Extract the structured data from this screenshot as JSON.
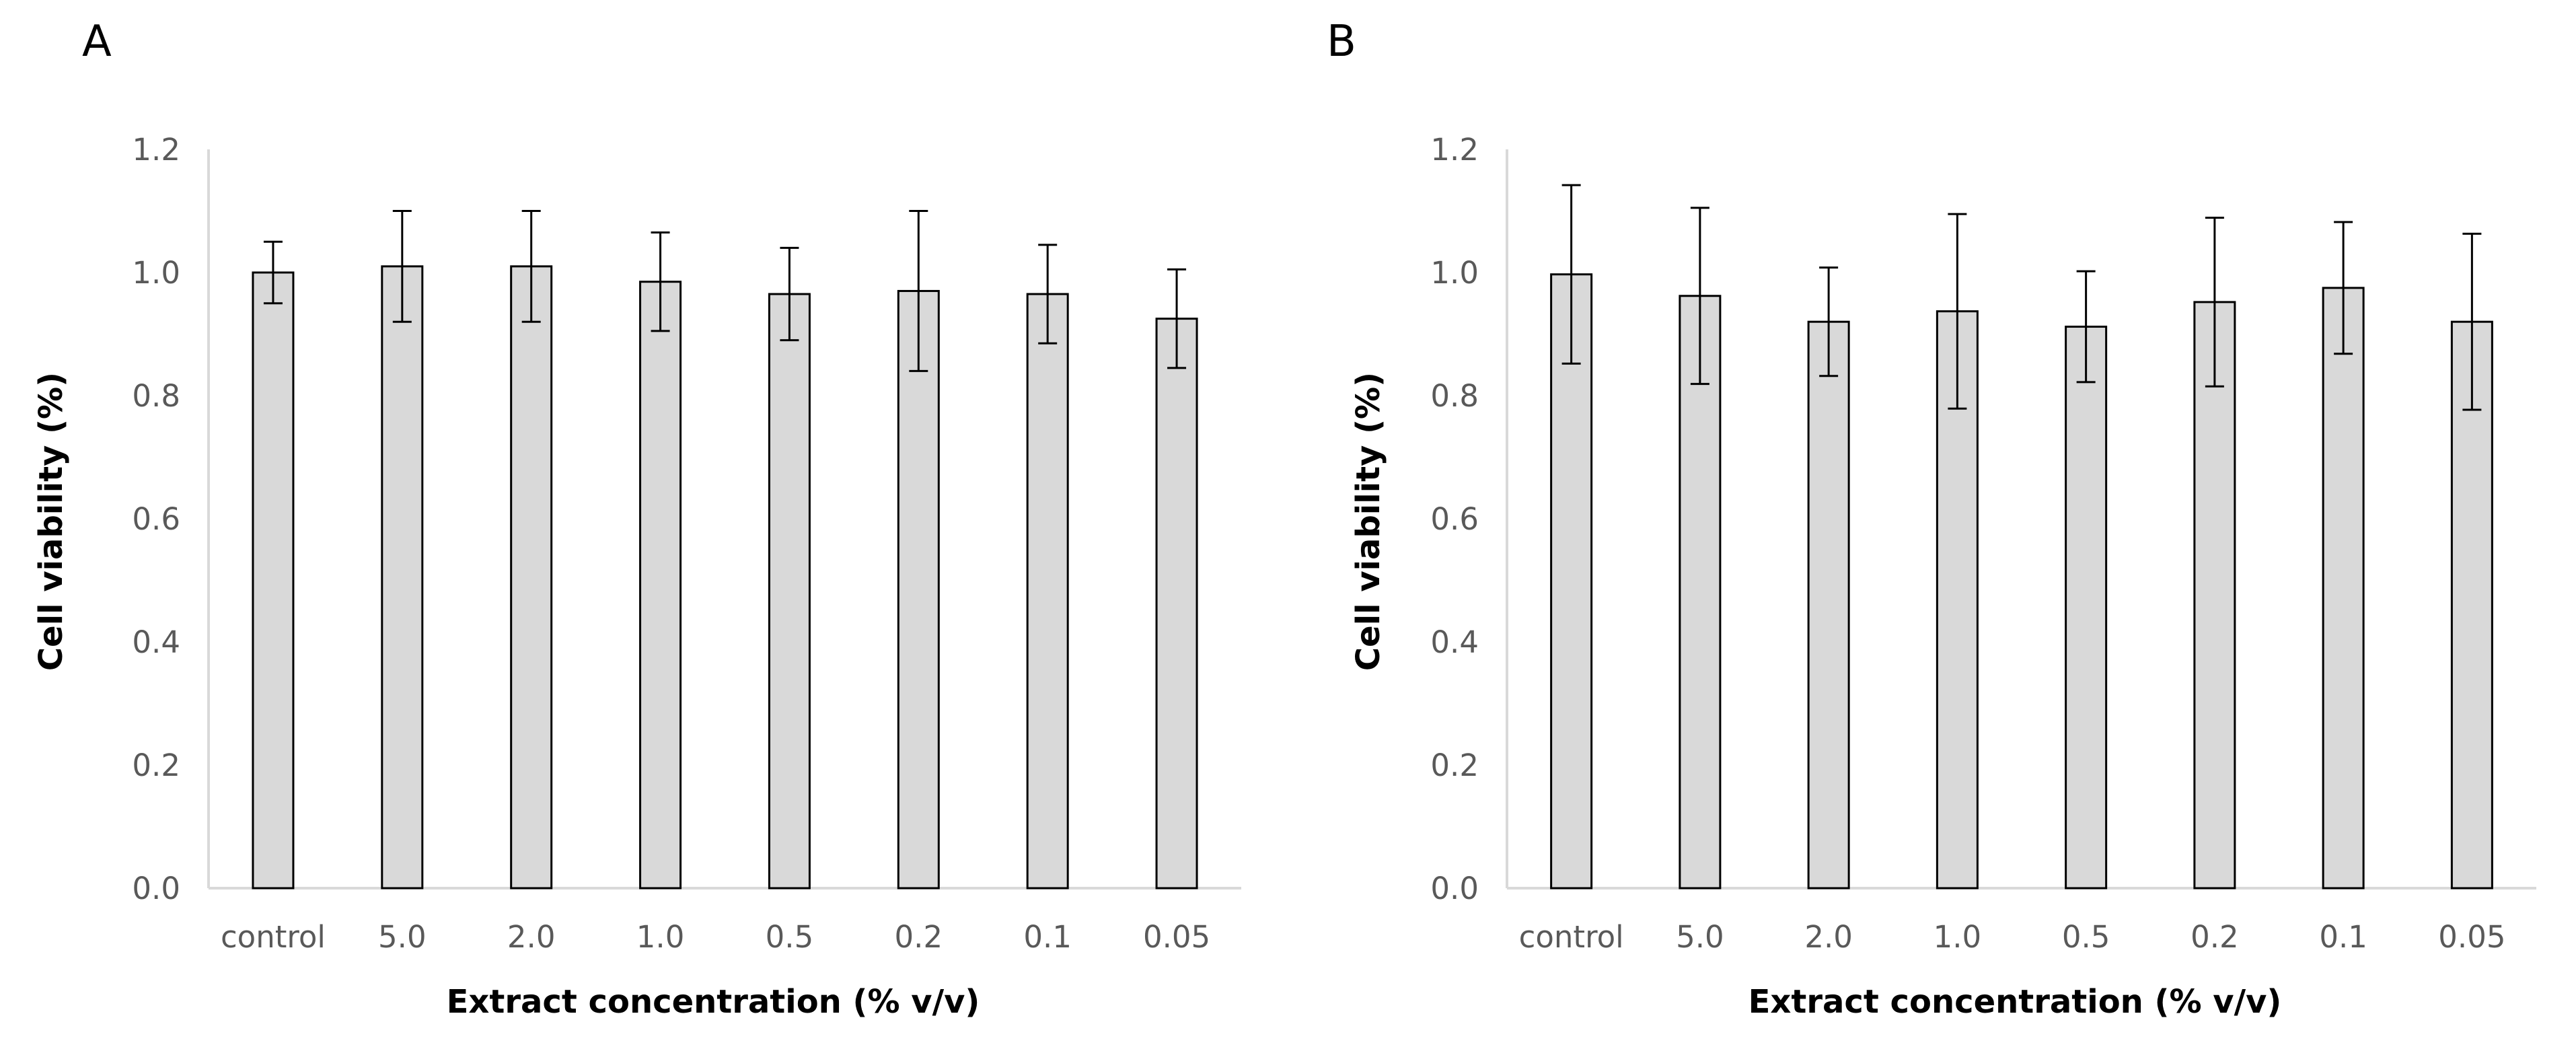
{
  "chart_data": [
    {
      "type": "bar",
      "panel_label": "A",
      "categories": [
        "control",
        "5.0",
        "2.0",
        "1.0",
        "0.5",
        "0.2",
        "0.1",
        "0.05"
      ],
      "values": [
        1.0,
        1.01,
        1.01,
        0.985,
        0.965,
        0.97,
        0.965,
        0.925
      ],
      "errors": [
        0.05,
        0.09,
        0.09,
        0.08,
        0.075,
        0.13,
        0.08,
        0.08
      ],
      "xlabel": "Extract concentration (% v/v)",
      "ylabel": "Cell viability (%)",
      "ylim": [
        0,
        1.2
      ],
      "yticks": [
        "0.0",
        "0.2",
        "0.4",
        "0.6",
        "0.8",
        "1.0",
        "1.2"
      ],
      "ytick_values": [
        0,
        0.2,
        0.4,
        0.6,
        0.8,
        1.0,
        1.2
      ],
      "bar_color": "#d9d9d9",
      "grid": false
    },
    {
      "type": "bar",
      "panel_label": "B",
      "categories": [
        "control",
        "5.0",
        "2.0",
        "1.0",
        "0.5",
        "0.2",
        "0.1",
        "0.05"
      ],
      "values": [
        0.997,
        0.962,
        0.92,
        0.937,
        0.912,
        0.952,
        0.975,
        0.92
      ],
      "errors": [
        0.145,
        0.143,
        0.088,
        0.158,
        0.09,
        0.137,
        0.107,
        0.143
      ],
      "xlabel": "Extract concentration (% v/v)",
      "ylabel": "Cell viability (%)",
      "ylim": [
        0,
        1.2
      ],
      "yticks": [
        "0.0",
        "0.2",
        "0.4",
        "0.6",
        "0.8",
        "1.0",
        "1.2"
      ],
      "ytick_values": [
        0,
        0.2,
        0.4,
        0.6,
        0.8,
        1.0,
        1.2
      ],
      "bar_color": "#d9d9d9",
      "grid": false
    }
  ]
}
